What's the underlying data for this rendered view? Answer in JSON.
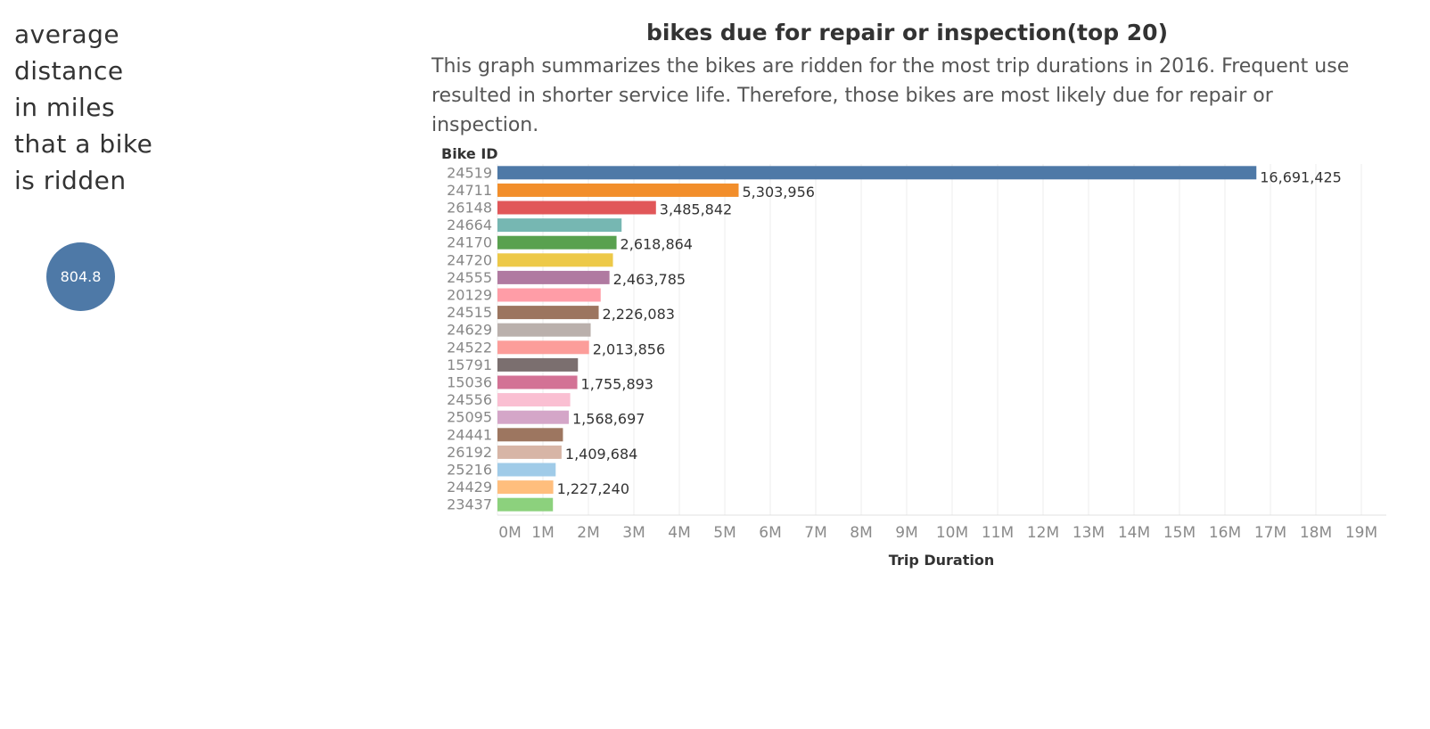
{
  "left_panel": {
    "title": "average\ndistance\nin miles\nthat a bike\nis ridden",
    "kpi_value": "804.8",
    "kpi_color": "#4e79a7"
  },
  "chart_data": {
    "type": "bar",
    "orientation": "horizontal",
    "title": "bikes due for repair or inspection(top 20)",
    "subtitle": "This graph summarizes the bikes are ridden for the most trip durations in 2016. Frequent use resulted in shorter service life. Therefore, those bikes are most likely due for repair or inspection.",
    "ylabel": "Bike ID",
    "xlabel": "Trip Duration",
    "xlim": [
      0,
      19000000
    ],
    "x_ticks": [
      "0M",
      "1M",
      "2M",
      "3M",
      "4M",
      "5M",
      "6M",
      "7M",
      "8M",
      "9M",
      "10M",
      "11M",
      "12M",
      "13M",
      "14M",
      "15M",
      "16M",
      "17M",
      "18M",
      "19M"
    ],
    "grid": "vertical",
    "categories": [
      "24519",
      "24711",
      "26148",
      "24664",
      "24170",
      "24720",
      "24555",
      "20129",
      "24515",
      "24629",
      "24522",
      "15791",
      "15036",
      "24556",
      "25095",
      "24441",
      "26192",
      "25216",
      "24429",
      "23437"
    ],
    "values": [
      16691425,
      5303956,
      3485842,
      2730000,
      2618864,
      2540000,
      2463785,
      2270000,
      2226083,
      2050000,
      2013856,
      1770000,
      1755893,
      1600000,
      1568697,
      1440000,
      1409684,
      1280000,
      1227240,
      1220000
    ],
    "data_labels": [
      "16,691,425",
      "5,303,956",
      "3,485,842",
      "",
      "2,618,864",
      "",
      "2,463,785",
      "",
      "2,226,083",
      "",
      "2,013,856",
      "",
      "1,755,893",
      "",
      "1,568,697",
      "",
      "1,409,684",
      "",
      "1,227,240",
      ""
    ],
    "colors": [
      "#4e79a7",
      "#f28e2b",
      "#e15759",
      "#76b7b2",
      "#59a14f",
      "#edc948",
      "#b07aa1",
      "#ff9da7",
      "#9c755f",
      "#bab0ac",
      "#fc9d9a",
      "#7b6f6f",
      "#d37295",
      "#fabfd2",
      "#d4a6c8",
      "#9d7660",
      "#d7b5a6",
      "#a0cbe8",
      "#ffbe7d",
      "#8cd17d"
    ]
  }
}
